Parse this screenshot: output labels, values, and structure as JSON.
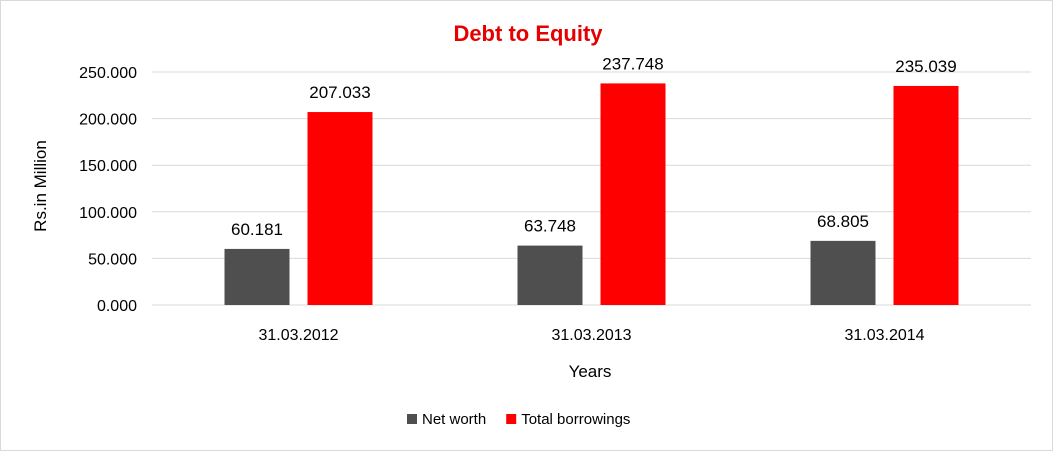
{
  "chart_data": {
    "type": "bar",
    "title": "Debt to Equity",
    "xlabel": "Years",
    "ylabel": "Rs.in Million",
    "categories": [
      "31.03.2012",
      "31.03.2013",
      "31.03.2014"
    ],
    "series": [
      {
        "name": "Net worth",
        "values": [
          60.181,
          63.748,
          68.805
        ],
        "labels": [
          "60.181",
          "63.748",
          "68.805"
        ],
        "color": "#4f4f4f"
      },
      {
        "name": "Total borrowings",
        "values": [
          207.033,
          237.748,
          235.039
        ],
        "labels": [
          "207.033",
          "237.748",
          "235.039"
        ],
        "color": "#ff0000"
      }
    ],
    "ylim": [
      0,
      250
    ],
    "yticks": [
      "0.000",
      "50.000",
      "100.000",
      "150.000",
      "200.000",
      "250.000"
    ],
    "grid": true,
    "legend_position": "bottom",
    "title_color": "#e60000",
    "gridline_color": "#d9d9d9"
  }
}
